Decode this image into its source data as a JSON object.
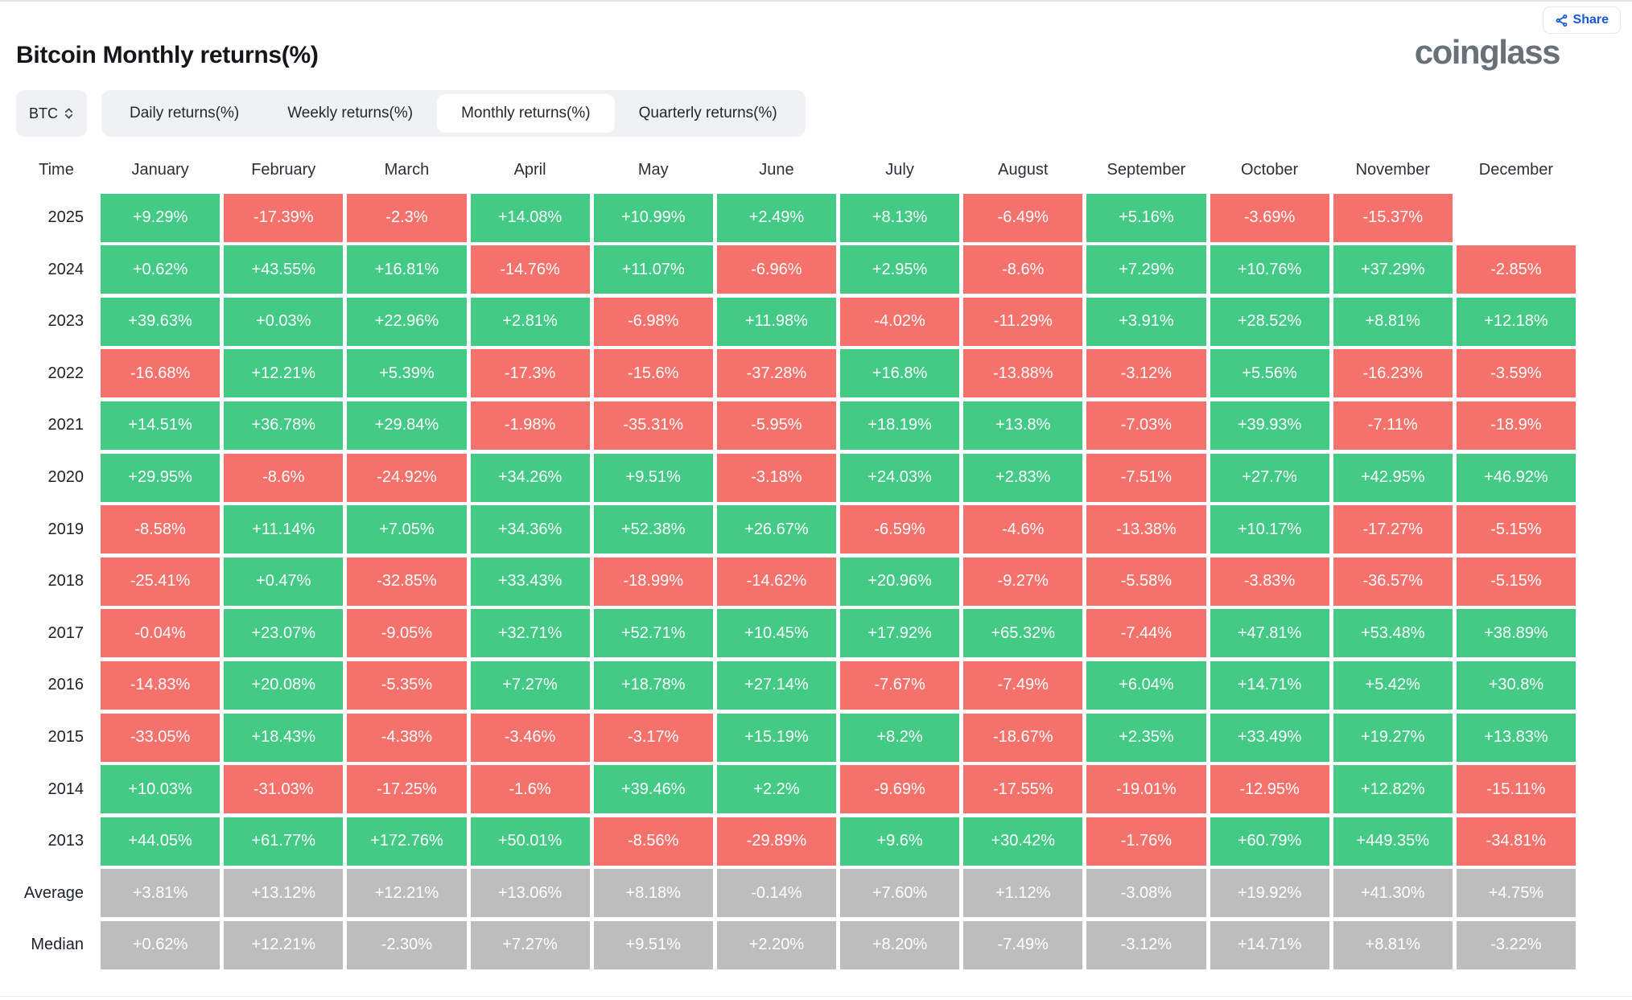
{
  "header": {
    "title": "Bitcoin Monthly returns(%)",
    "logo_text": "coinglass",
    "share_label": "Share"
  },
  "controls": {
    "symbol_select": {
      "value": "BTC"
    },
    "tabs": [
      {
        "label": "Daily returns(%)",
        "active": false
      },
      {
        "label": "Weekly returns(%)",
        "active": false
      },
      {
        "label": "Monthly returns(%)",
        "active": true
      },
      {
        "label": "Quarterly returns(%)",
        "active": false
      }
    ]
  },
  "colors": {
    "positive": "#43CA85",
    "negative": "#F5716B",
    "summary": "#BDBDBD",
    "accent_blue": "#1658D8"
  },
  "table": {
    "columns": [
      "Time",
      "January",
      "February",
      "March",
      "April",
      "May",
      "June",
      "July",
      "August",
      "September",
      "October",
      "November",
      "December"
    ],
    "rows": [
      {
        "label": "2025",
        "type": "year",
        "cells": [
          "+9.29%",
          "-17.39%",
          "-2.3%",
          "+14.08%",
          "+10.99%",
          "+2.49%",
          "+8.13%",
          "-6.49%",
          "+5.16%",
          "-3.69%",
          "-15.37%",
          null
        ]
      },
      {
        "label": "2024",
        "type": "year",
        "cells": [
          "+0.62%",
          "+43.55%",
          "+16.81%",
          "-14.76%",
          "+11.07%",
          "-6.96%",
          "+2.95%",
          "-8.6%",
          "+7.29%",
          "+10.76%",
          "+37.29%",
          "-2.85%"
        ]
      },
      {
        "label": "2023",
        "type": "year",
        "cells": [
          "+39.63%",
          "+0.03%",
          "+22.96%",
          "+2.81%",
          "-6.98%",
          "+11.98%",
          "-4.02%",
          "-11.29%",
          "+3.91%",
          "+28.52%",
          "+8.81%",
          "+12.18%"
        ]
      },
      {
        "label": "2022",
        "type": "year",
        "cells": [
          "-16.68%",
          "+12.21%",
          "+5.39%",
          "-17.3%",
          "-15.6%",
          "-37.28%",
          "+16.8%",
          "-13.88%",
          "-3.12%",
          "+5.56%",
          "-16.23%",
          "-3.59%"
        ]
      },
      {
        "label": "2021",
        "type": "year",
        "cells": [
          "+14.51%",
          "+36.78%",
          "+29.84%",
          "-1.98%",
          "-35.31%",
          "-5.95%",
          "+18.19%",
          "+13.8%",
          "-7.03%",
          "+39.93%",
          "-7.11%",
          "-18.9%"
        ]
      },
      {
        "label": "2020",
        "type": "year",
        "cells": [
          "+29.95%",
          "-8.6%",
          "-24.92%",
          "+34.26%",
          "+9.51%",
          "-3.18%",
          "+24.03%",
          "+2.83%",
          "-7.51%",
          "+27.7%",
          "+42.95%",
          "+46.92%"
        ]
      },
      {
        "label": "2019",
        "type": "year",
        "cells": [
          "-8.58%",
          "+11.14%",
          "+7.05%",
          "+34.36%",
          "+52.38%",
          "+26.67%",
          "-6.59%",
          "-4.6%",
          "-13.38%",
          "+10.17%",
          "-17.27%",
          "-5.15%"
        ]
      },
      {
        "label": "2018",
        "type": "year",
        "cells": [
          "-25.41%",
          "+0.47%",
          "-32.85%",
          "+33.43%",
          "-18.99%",
          "-14.62%",
          "+20.96%",
          "-9.27%",
          "-5.58%",
          "-3.83%",
          "-36.57%",
          "-5.15%"
        ]
      },
      {
        "label": "2017",
        "type": "year",
        "cells": [
          "-0.04%",
          "+23.07%",
          "-9.05%",
          "+32.71%",
          "+52.71%",
          "+10.45%",
          "+17.92%",
          "+65.32%",
          "-7.44%",
          "+47.81%",
          "+53.48%",
          "+38.89%"
        ]
      },
      {
        "label": "2016",
        "type": "year",
        "cells": [
          "-14.83%",
          "+20.08%",
          "-5.35%",
          "+7.27%",
          "+18.78%",
          "+27.14%",
          "-7.67%",
          "-7.49%",
          "+6.04%",
          "+14.71%",
          "+5.42%",
          "+30.8%"
        ]
      },
      {
        "label": "2015",
        "type": "year",
        "cells": [
          "-33.05%",
          "+18.43%",
          "-4.38%",
          "-3.46%",
          "-3.17%",
          "+15.19%",
          "+8.2%",
          "-18.67%",
          "+2.35%",
          "+33.49%",
          "+19.27%",
          "+13.83%"
        ]
      },
      {
        "label": "2014",
        "type": "year",
        "cells": [
          "+10.03%",
          "-31.03%",
          "-17.25%",
          "-1.6%",
          "+39.46%",
          "+2.2%",
          "-9.69%",
          "-17.55%",
          "-19.01%",
          "-12.95%",
          "+12.82%",
          "-15.11%"
        ]
      },
      {
        "label": "2013",
        "type": "year",
        "cells": [
          "+44.05%",
          "+61.77%",
          "+172.76%",
          "+50.01%",
          "-8.56%",
          "-29.89%",
          "+9.6%",
          "+30.42%",
          "-1.76%",
          "+60.79%",
          "+449.35%",
          "-34.81%"
        ]
      },
      {
        "label": "Average",
        "type": "summary",
        "cells": [
          "+3.81%",
          "+13.12%",
          "+12.21%",
          "+13.06%",
          "+8.18%",
          "-0.14%",
          "+7.60%",
          "+1.12%",
          "-3.08%",
          "+19.92%",
          "+41.30%",
          "+4.75%"
        ]
      },
      {
        "label": "Median",
        "type": "summary",
        "cells": [
          "+0.62%",
          "+12.21%",
          "-2.30%",
          "+7.27%",
          "+9.51%",
          "+2.20%",
          "+8.20%",
          "-7.49%",
          "-3.12%",
          "+14.71%",
          "+8.81%",
          "-3.22%"
        ]
      }
    ]
  }
}
